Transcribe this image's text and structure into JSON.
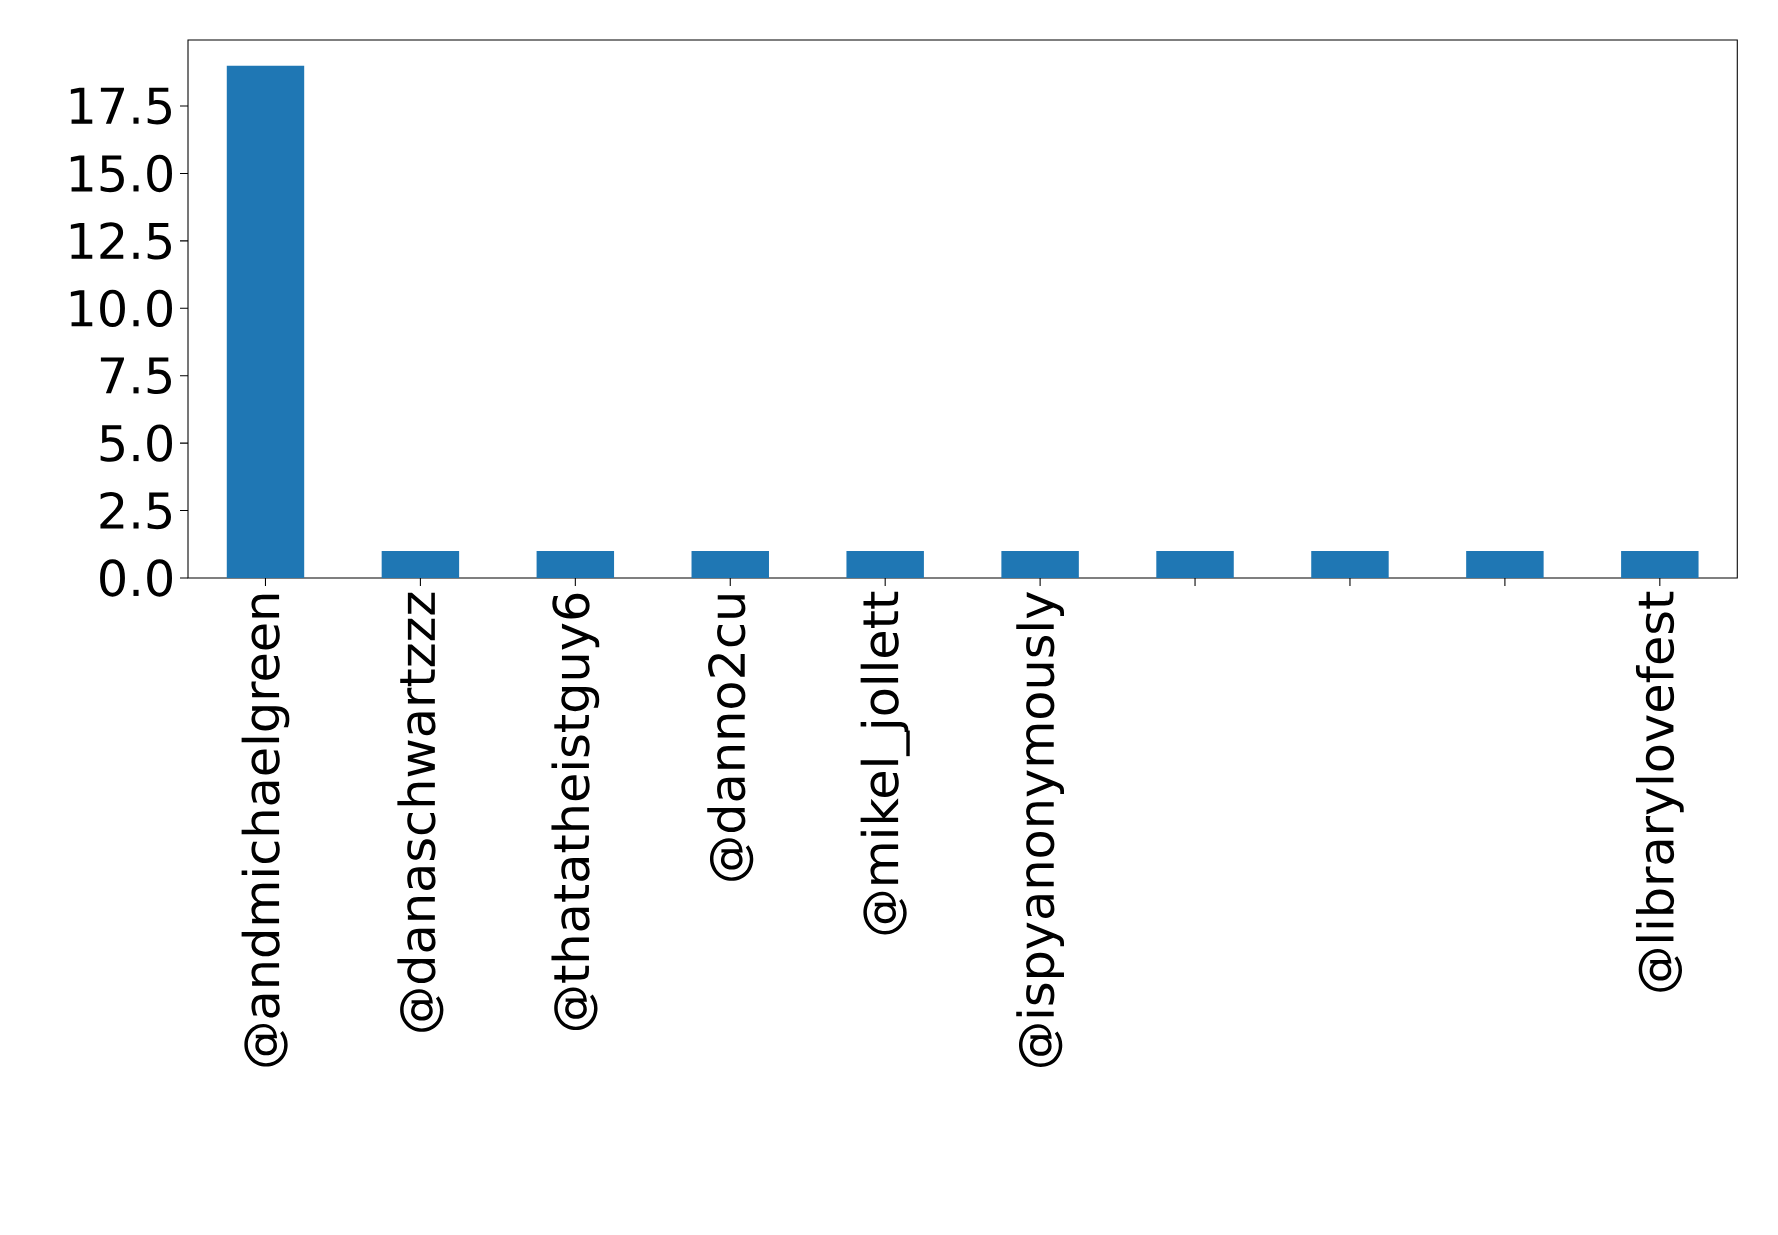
{
  "chart_data": {
    "type": "bar",
    "categories": [
      "@andmichaelgreen",
      "@danaschwartzzz",
      "@thatatheistguy6",
      "@danno2cu",
      "@mikel_jollett",
      "@ispyanonymously",
      null,
      null,
      null,
      "@librarylovefest"
    ],
    "values": [
      19,
      1,
      1,
      1,
      1,
      1,
      1,
      1,
      1,
      1
    ],
    "color": "#1f77b4",
    "ylim": [
      0,
      19.95
    ],
    "yticks": [
      {
        "value": 0,
        "label": "0.0"
      },
      2.5,
      {
        "value": 5,
        "label": "5.0"
      },
      7.5,
      {
        "value": 10,
        "label": "10.0"
      },
      12.5,
      {
        "value": 15,
        "label": "15.0"
      },
      17.5
    ]
  }
}
